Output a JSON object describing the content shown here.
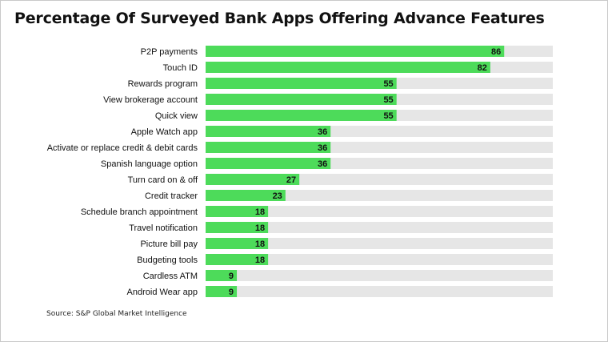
{
  "title": "Percentage Of Surveyed Bank Apps Offering Advance Features",
  "source": "Source: S&P Global Market Intelligence",
  "colors": {
    "bar": "#4ddb5a",
    "track": "#e6e6e6",
    "label": "#111111"
  },
  "chart_data": {
    "type": "bar",
    "orientation": "horizontal",
    "title": "Percentage Of Surveyed Bank Apps Offering Advance Features",
    "categories": [
      "P2P payments",
      "Touch ID",
      "Rewards program",
      "View brokerage account",
      "Quick view",
      "Apple Watch app",
      "Activate or replace credit & debit cards",
      "Spanish language option",
      "Turn card on & off",
      "Credit tracker",
      "Schedule branch appointment",
      "Travel notification",
      "Picture bill pay",
      "Budgeting tools",
      "Cardless ATM",
      "Android Wear app"
    ],
    "values": [
      86,
      82,
      55,
      55,
      55,
      36,
      36,
      36,
      27,
      23,
      18,
      18,
      18,
      18,
      9,
      9
    ],
    "xlim": [
      0,
      100
    ],
    "grid": false,
    "legend": "none",
    "data_labels": true
  }
}
